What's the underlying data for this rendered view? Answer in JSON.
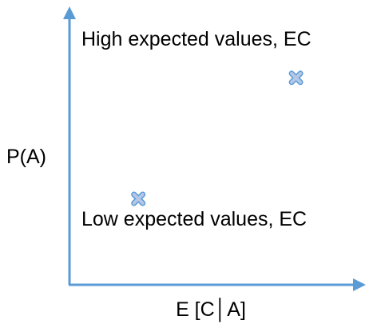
{
  "chart_data": {
    "type": "scatter",
    "title": "",
    "xlabel": "E [C│A]",
    "ylabel": "P(A)",
    "xlim": [
      0,
      1
    ],
    "ylim": [
      0,
      1
    ],
    "grid": false,
    "legend": "none",
    "annotations": [
      "High expected values, EC",
      "Low expected values, EC"
    ],
    "points": [
      {
        "x": 0.79,
        "y": 0.77
      },
      {
        "x": 0.24,
        "y": 0.32
      }
    ],
    "colors": {
      "axis": "#5B9BD5",
      "marker_fill": "#B4C7E7",
      "marker_stroke": "#5B9BD5"
    }
  }
}
